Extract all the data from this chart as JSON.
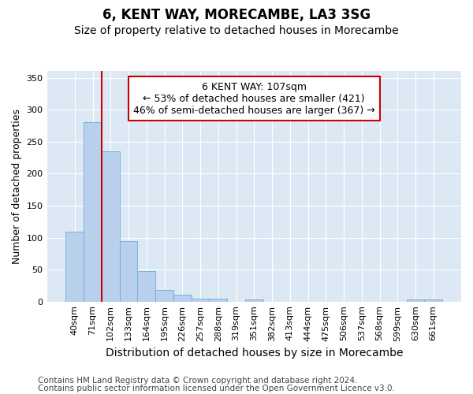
{
  "title1": "6, KENT WAY, MORECAMBE, LA3 3SG",
  "title2": "Size of property relative to detached houses in Morecambe",
  "xlabel": "Distribution of detached houses by size in Morecambe",
  "ylabel": "Number of detached properties",
  "categories": [
    "40sqm",
    "71sqm",
    "102sqm",
    "133sqm",
    "164sqm",
    "195sqm",
    "226sqm",
    "257sqm",
    "288sqm",
    "319sqm",
    "351sqm",
    "382sqm",
    "413sqm",
    "444sqm",
    "475sqm",
    "506sqm",
    "537sqm",
    "568sqm",
    "599sqm",
    "630sqm",
    "661sqm"
  ],
  "values": [
    109,
    281,
    235,
    94,
    48,
    18,
    11,
    5,
    5,
    0,
    3,
    0,
    0,
    0,
    0,
    0,
    0,
    0,
    0,
    3,
    3
  ],
  "bar_color": "#b8d0eb",
  "bar_edge_color": "#6baed6",
  "vline_color": "#cc0000",
  "vline_index": 2,
  "annotation_text": "6 KENT WAY: 107sqm\n← 53% of detached houses are smaller (421)\n46% of semi-detached houses are larger (367) →",
  "annotation_box_color": "white",
  "annotation_box_edge": "#cc0000",
  "ylim": [
    0,
    360
  ],
  "yticks": [
    0,
    50,
    100,
    150,
    200,
    250,
    300,
    350
  ],
  "plot_bg": "#dce9f5",
  "footer1": "Contains HM Land Registry data © Crown copyright and database right 2024.",
  "footer2": "Contains public sector information licensed under the Open Government Licence v3.0.",
  "title1_fontsize": 12,
  "title2_fontsize": 10,
  "xlabel_fontsize": 10,
  "ylabel_fontsize": 9,
  "tick_fontsize": 8,
  "annot_fontsize": 9,
  "footer_fontsize": 7.5
}
